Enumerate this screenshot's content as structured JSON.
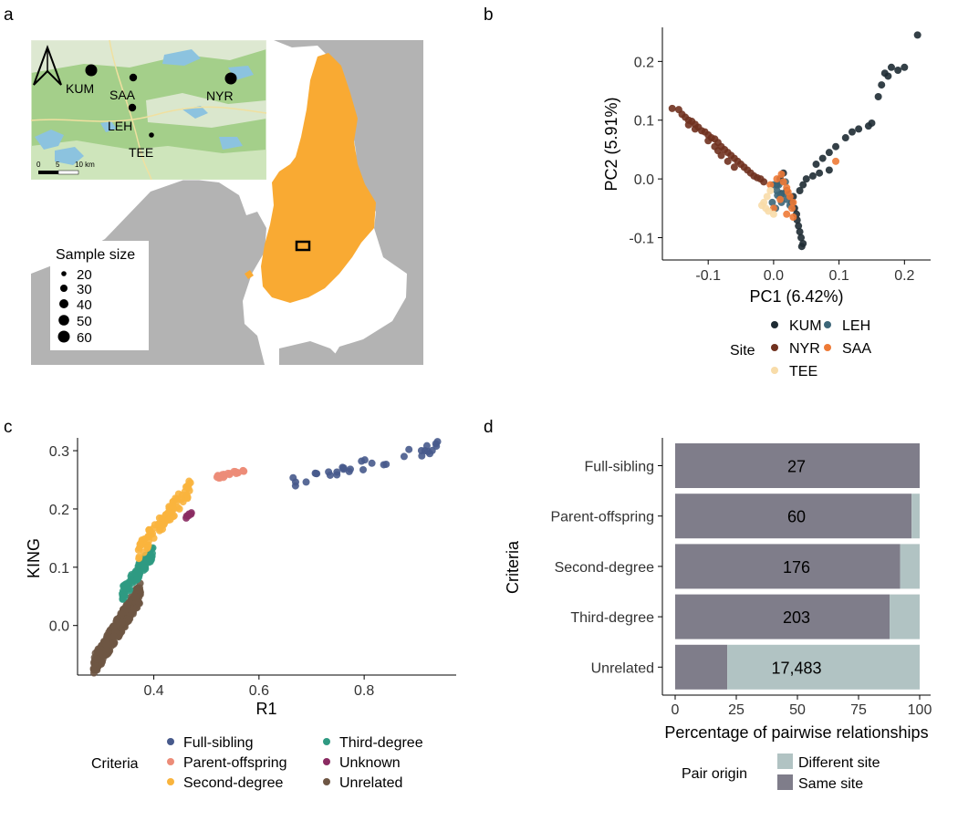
{
  "panel_labels": [
    "a",
    "b",
    "c",
    "d"
  ],
  "map": {
    "inset_sites": [
      {
        "name": "KUM",
        "size": 60
      },
      {
        "name": "SAA",
        "size": 30
      },
      {
        "name": "NYR",
        "size": 60
      },
      {
        "name": "LEH",
        "size": 30
      },
      {
        "name": "TEE",
        "size": 20
      }
    ],
    "scalebar_labels": [
      "0",
      "5",
      "10 km"
    ],
    "size_legend": {
      "title": "Sample size",
      "values": [
        "20",
        "30",
        "40",
        "50",
        "60"
      ]
    },
    "colors": {
      "land": "#b3b3b3",
      "sea": "#ffffff",
      "finland": "#f9aa33",
      "inset_bg": "#a4cf8a",
      "water": "#8cc3df",
      "box": "#000000"
    }
  },
  "chart_data": [
    {
      "panel": "b",
      "type": "scatter",
      "xlabel": "PC1 (6.42%)",
      "ylabel": "PC2 (5.91%)",
      "xlim": [
        -0.17,
        0.24
      ],
      "ylim": [
        -0.138,
        0.258
      ],
      "xticks": [
        {
          "v": -0.1,
          "label": "-0.1"
        },
        {
          "v": 0.0,
          "label": "0.0"
        },
        {
          "v": 0.1,
          "label": "0.1"
        },
        {
          "v": 0.2,
          "label": "0.2"
        }
      ],
      "yticks": [
        {
          "v": -0.1,
          "label": "-0.1"
        },
        {
          "v": 0.0,
          "label": "0.0"
        },
        {
          "v": 0.1,
          "label": "0.1"
        },
        {
          "v": 0.2,
          "label": "0.2"
        }
      ],
      "legend": {
        "title": "Site",
        "position": "bottom"
      },
      "series": [
        {
          "name": "KUM",
          "color": "#1e2b33",
          "points": [
            [
              0.22,
              0.245
            ],
            [
              0.2,
              0.19
            ],
            [
              0.19,
              0.185
            ],
            [
              0.18,
              0.19
            ],
            [
              0.17,
              0.18
            ],
            [
              0.175,
              0.175
            ],
            [
              0.165,
              0.16
            ],
            [
              0.16,
              0.14
            ],
            [
              0.15,
              0.095
            ],
            [
              0.145,
              0.09
            ],
            [
              0.13,
              0.085
            ],
            [
              0.12,
              0.08
            ],
            [
              0.11,
              0.07
            ],
            [
              0.095,
              0.055
            ],
            [
              0.085,
              0.045
            ],
            [
              0.075,
              0.035
            ],
            [
              0.065,
              0.025
            ],
            [
              0.085,
              0.015
            ],
            [
              0.07,
              0.01
            ],
            [
              0.06,
              0.005
            ],
            [
              0.05,
              0.0
            ],
            [
              0.045,
              -0.01
            ],
            [
              0.04,
              -0.02
            ],
            [
              0.03,
              -0.03
            ],
            [
              0.028,
              -0.04
            ],
            [
              0.032,
              -0.05
            ],
            [
              0.035,
              -0.06
            ],
            [
              0.036,
              -0.07
            ],
            [
              0.038,
              -0.08
            ],
            [
              0.04,
              -0.09
            ],
            [
              0.042,
              -0.1
            ],
            [
              0.045,
              -0.11
            ],
            [
              0.043,
              -0.115
            ],
            [
              0.025,
              -0.03
            ],
            [
              0.02,
              -0.02
            ],
            [
              0.01,
              0.0
            ],
            [
              0.015,
              0.01
            ],
            [
              0.005,
              -0.01
            ],
            [
              0.012,
              -0.025
            ]
          ]
        },
        {
          "name": "LEH",
          "color": "#3c6678",
          "points": [
            [
              0.0,
              -0.01
            ],
            [
              0.005,
              -0.02
            ],
            [
              0.01,
              -0.03
            ],
            [
              -0.002,
              -0.04
            ],
            [
              0.003,
              -0.05
            ],
            [
              0.015,
              -0.025
            ],
            [
              0.008,
              -0.01
            ],
            [
              0.012,
              -0.04
            ],
            [
              0.02,
              -0.035
            ],
            [
              0.025,
              -0.045
            ],
            [
              0.018,
              -0.005
            ],
            [
              0.006,
              -0.028
            ]
          ]
        },
        {
          "name": "NYR",
          "color": "#70311f",
          "points": [
            [
              -0.155,
              0.12
            ],
            [
              -0.145,
              0.118
            ],
            [
              -0.14,
              0.11
            ],
            [
              -0.135,
              0.105
            ],
            [
              -0.13,
              0.1
            ],
            [
              -0.125,
              0.098
            ],
            [
              -0.12,
              0.093
            ],
            [
              -0.115,
              0.088
            ],
            [
              -0.11,
              0.082
            ],
            [
              -0.105,
              0.08
            ],
            [
              -0.1,
              0.075
            ],
            [
              -0.095,
              0.07
            ],
            [
              -0.09,
              0.068
            ],
            [
              -0.085,
              0.062
            ],
            [
              -0.08,
              0.055
            ],
            [
              -0.075,
              0.05
            ],
            [
              -0.07,
              0.045
            ],
            [
              -0.065,
              0.04
            ],
            [
              -0.06,
              0.035
            ],
            [
              -0.055,
              0.03
            ],
            [
              -0.05,
              0.025
            ],
            [
              -0.045,
              0.02
            ],
            [
              -0.04,
              0.015
            ],
            [
              -0.035,
              0.01
            ],
            [
              -0.03,
              0.005
            ],
            [
              -0.025,
              0.002
            ],
            [
              -0.02,
              0.0
            ],
            [
              -0.015,
              -0.005
            ],
            [
              -0.1,
              0.065
            ],
            [
              -0.09,
              0.055
            ],
            [
              -0.08,
              0.04
            ],
            [
              -0.07,
              0.03
            ],
            [
              -0.06,
              0.02
            ],
            [
              -0.12,
              0.085
            ],
            [
              -0.13,
              0.092
            ],
            [
              -0.085,
              0.048
            ]
          ]
        },
        {
          "name": "SAA",
          "color": "#ee7a36",
          "points": [
            [
              0.095,
              0.03
            ],
            [
              0.015,
              -0.005
            ],
            [
              0.02,
              -0.015
            ],
            [
              0.025,
              -0.03
            ],
            [
              0.03,
              -0.04
            ],
            [
              0.028,
              -0.05
            ],
            [
              0.02,
              -0.06
            ],
            [
              0.03,
              -0.065
            ],
            [
              0.01,
              -0.035
            ],
            [
              0.005,
              0.0
            ],
            [
              -0.005,
              -0.01
            ],
            [
              0.0,
              -0.05
            ],
            [
              0.012,
              0.008
            ],
            [
              0.022,
              -0.022
            ]
          ]
        },
        {
          "name": "TEE",
          "color": "#f8dca9",
          "points": [
            [
              -0.015,
              -0.04
            ],
            [
              -0.01,
              -0.03
            ],
            [
              -0.012,
              -0.05
            ],
            [
              -0.005,
              -0.02
            ],
            [
              0.0,
              -0.06
            ],
            [
              -0.018,
              -0.045
            ],
            [
              -0.008,
              -0.055
            ]
          ]
        }
      ]
    },
    {
      "panel": "c",
      "type": "scatter",
      "xlabel": "R1",
      "ylabel": "KING",
      "xlim": [
        0.255,
        0.975
      ],
      "ylim": [
        -0.085,
        0.322
      ],
      "xticks": [
        {
          "v": 0.4,
          "label": "0.4"
        },
        {
          "v": 0.6,
          "label": "0.6"
        },
        {
          "v": 0.8,
          "label": "0.8"
        }
      ],
      "yticks": [
        {
          "v": 0.0,
          "label": "0.0"
        },
        {
          "v": 0.1,
          "label": "0.1"
        },
        {
          "v": 0.2,
          "label": "0.2"
        },
        {
          "v": 0.3,
          "label": "0.3"
        }
      ],
      "legend": {
        "title": "Criteria",
        "position": "bottom"
      },
      "series": [
        {
          "name": "Full-sibling",
          "color": "#475a8c"
        },
        {
          "name": "Parent-offspring",
          "color": "#ec8c78"
        },
        {
          "name": "Second-degree",
          "color": "#f9b43d"
        },
        {
          "name": "Third-degree",
          "color": "#2f9a82"
        },
        {
          "name": "Unknown",
          "color": "#8a2b62"
        },
        {
          "name": "Unrelated",
          "color": "#6e5644"
        }
      ]
    },
    {
      "panel": "d",
      "type": "bar",
      "orientation": "horizontal",
      "stacked": true,
      "categories": [
        "Full-sibling",
        "Parent-offspring",
        "Second-degree",
        "Third-degree",
        "Unrelated"
      ],
      "counts": [
        "27",
        "60",
        "176",
        "203",
        "17,483"
      ],
      "xlabel": "Percentage of pairwise relationships",
      "ylabel": "Criteria",
      "xlim": [
        0,
        100
      ],
      "xticks": [
        {
          "v": 0,
          "label": "0"
        },
        {
          "v": 25,
          "label": "25"
        },
        {
          "v": 50,
          "label": "50"
        },
        {
          "v": 75,
          "label": "75"
        },
        {
          "v": 100,
          "label": "100"
        }
      ],
      "legend": {
        "title": "Pair origin",
        "position": "bottom"
      },
      "series": [
        {
          "name": "Same site",
          "color": "#7f7d8a",
          "values": [
            100,
            96.7,
            92.0,
            87.7,
            21.3
          ]
        },
        {
          "name": "Different site",
          "color": "#b1c3c3",
          "values": [
            0,
            3.3,
            8.0,
            12.3,
            78.7
          ]
        }
      ]
    }
  ]
}
